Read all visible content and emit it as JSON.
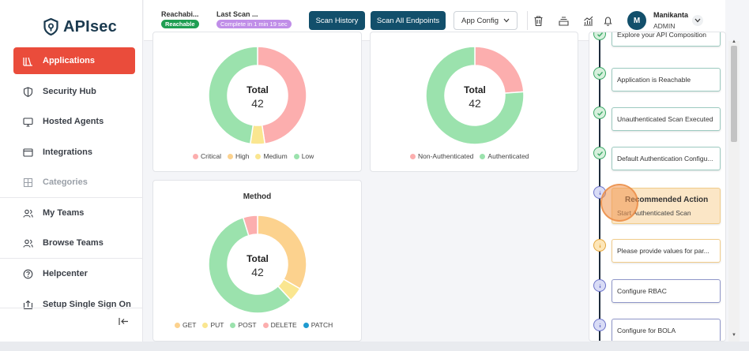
{
  "app": {
    "name": "APIsec"
  },
  "sidebar": {
    "items": [
      {
        "label": "Applications",
        "icon": "applications-icon",
        "active": true
      },
      {
        "label": "Security Hub",
        "icon": "shield-icon"
      },
      {
        "label": "Hosted Agents",
        "icon": "monitor-icon"
      },
      {
        "label": "Integrations",
        "icon": "integrations-icon"
      },
      {
        "label": "Categories",
        "icon": "grid-icon",
        "disabled": true
      },
      {
        "label": "My Teams",
        "icon": "team-icon"
      },
      {
        "label": "Browse Teams",
        "icon": "team-icon"
      },
      {
        "label": "Helpcenter",
        "icon": "help-icon"
      },
      {
        "label": "Setup Single Sign On",
        "icon": "login-icon"
      }
    ],
    "collapse_icon": "collapse-icon"
  },
  "topbar": {
    "reachability": {
      "label": "Reachabi...",
      "badge": "Reachable"
    },
    "last_scan": {
      "label": "Last Scan ...",
      "badge": "Complete in 1 min 19 sec"
    },
    "scan_history_label": "Scan History",
    "scan_all_label": "Scan All Endpoints",
    "app_config_label": "App Config",
    "user": {
      "initial": "M",
      "name": "Manikanta",
      "role": "ADMIN"
    }
  },
  "charts": {
    "severity": {
      "center_label": "Total",
      "center_value": "42"
    },
    "auth": {
      "center_label": "Total",
      "center_value": "42"
    },
    "method": {
      "title": "Method",
      "center_label": "Total",
      "center_value": "42"
    }
  },
  "chart_data": [
    {
      "type": "pie",
      "title": "",
      "categories": [
        "Critical",
        "High",
        "Medium",
        "Low"
      ],
      "values": [
        20,
        0,
        2,
        20
      ],
      "colors": [
        "#fcaeae",
        "#fcd28e",
        "#fae690",
        "#9be2ad"
      ]
    },
    {
      "type": "pie",
      "title": "",
      "categories": [
        "Non-Authenticated",
        "Authenticated"
      ],
      "values": [
        10,
        32
      ],
      "colors": [
        "#fcaeae",
        "#9be2ad"
      ]
    },
    {
      "type": "pie",
      "title": "Method",
      "categories": [
        "GET",
        "PUT",
        "POST",
        "DELETE",
        "PATCH"
      ],
      "values": [
        14,
        2,
        24,
        2,
        0
      ],
      "colors": [
        "#fcd28e",
        "#fae690",
        "#9be2ad",
        "#fcaeae",
        "#1f9ad0"
      ]
    }
  ],
  "timeline": {
    "items": [
      {
        "label": "Explore your API Composition",
        "status": "done"
      },
      {
        "label": "Application is Reachable",
        "status": "done"
      },
      {
        "label": "Unauthenticated Scan Executed",
        "status": "done"
      },
      {
        "label": "Default Authentication Configu...",
        "status": "done"
      },
      {
        "label": "Recommended Action",
        "sub": "Start Authenticated Scan",
        "status": "current"
      },
      {
        "label": "Please provide values for par...",
        "status": "warning"
      },
      {
        "label": "Configure RBAC",
        "status": "pending"
      },
      {
        "label": "Configure for BOLA",
        "status": "pending"
      }
    ]
  }
}
